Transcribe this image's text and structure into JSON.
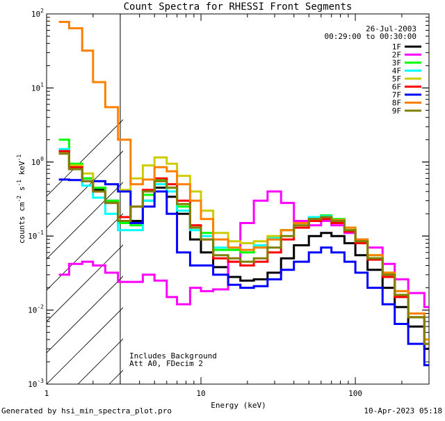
{
  "chart_data": {
    "type": "line",
    "title": "Count Spectra for RHESSI Front Segments",
    "date": "26-Jul-2003",
    "time_range": "00:29:00 to 00:30:00",
    "xlabel": "Energy (keV)",
    "ylabel_main": "counts cm",
    "ylabel_sup1": "-2",
    "ylabel_mid": " s",
    "ylabel_sup2": "-1",
    "ylabel_end": " keV",
    "ylabel_sup3": "-1",
    "x_scale": "log",
    "y_scale": "log",
    "xlim": [
      1,
      300
    ],
    "ylim": [
      0.001,
      100
    ],
    "x_ticks": [
      {
        "value": 1,
        "label": "1"
      },
      {
        "value": 10,
        "label": "10"
      },
      {
        "value": 100,
        "label": "100"
      }
    ],
    "y_ticks": [
      {
        "value": 100,
        "base": "10",
        "exp": "2"
      },
      {
        "value": 10,
        "base": "10",
        "exp": "1"
      },
      {
        "value": 1,
        "base": "10",
        "exp": "0"
      },
      {
        "value": 0.1,
        "base": "10",
        "exp": "-1"
      },
      {
        "value": 0.01,
        "base": "10",
        "exp": "-2"
      },
      {
        "value": 0.001,
        "base": "10",
        "exp": "-3"
      }
    ],
    "hatched_region_keV": [
      1,
      3
    ],
    "annotations": [
      "Includes Background",
      "Att A0, FDecim 2"
    ],
    "footer_left": "Generated by hsi_min_spectra_plot.pro",
    "footer_right": "10-Apr-2023 05:18",
    "series": [
      {
        "name": "1F",
        "color": "#000000",
        "x": [
          1.2,
          1.4,
          1.7,
          2,
          2.4,
          2.9,
          3.5,
          4.2,
          5,
          6,
          7,
          8.5,
          10,
          12,
          15,
          18,
          22,
          27,
          33,
          40,
          50,
          60,
          70,
          85,
          100,
          120,
          150,
          180,
          220,
          280
        ],
        "y": [
          1.4,
          0.85,
          0.6,
          0.42,
          0.3,
          0.15,
          0.16,
          0.3,
          0.45,
          0.34,
          0.2,
          0.09,
          0.06,
          0.038,
          0.028,
          0.025,
          0.026,
          0.032,
          0.05,
          0.075,
          0.1,
          0.11,
          0.1,
          0.08,
          0.055,
          0.035,
          0.02,
          0.011,
          0.006,
          0.003
        ]
      },
      {
        "name": "2F",
        "color": "#ff00ff",
        "x": [
          1.2,
          1.4,
          1.7,
          2,
          2.4,
          2.9,
          3.5,
          4.2,
          5,
          6,
          7,
          8.5,
          10,
          12,
          15,
          18,
          22,
          27,
          33,
          40,
          50,
          60,
          70,
          85,
          100,
          120,
          150,
          180,
          220,
          280
        ],
        "y": [
          0.03,
          0.042,
          0.045,
          0.04,
          0.032,
          0.024,
          0.024,
          0.03,
          0.025,
          0.015,
          0.012,
          0.02,
          0.018,
          0.019,
          0.045,
          0.15,
          0.3,
          0.4,
          0.28,
          0.16,
          0.14,
          0.16,
          0.14,
          0.11,
          0.09,
          0.07,
          0.042,
          0.026,
          0.017,
          0.011
        ]
      },
      {
        "name": "3F",
        "color": "#00ff00",
        "x": [
          1.2,
          1.4,
          1.7,
          2,
          2.4,
          2.9,
          3.5,
          4.2,
          5,
          6,
          7,
          8.5,
          10,
          12,
          15,
          18,
          22,
          27,
          33,
          40,
          50,
          60,
          70,
          85,
          100,
          120,
          150,
          180,
          220,
          280
        ],
        "y": [
          2.0,
          0.95,
          0.6,
          0.45,
          0.3,
          0.15,
          0.14,
          0.36,
          0.58,
          0.45,
          0.25,
          0.13,
          0.11,
          0.065,
          0.065,
          0.06,
          0.07,
          0.09,
          0.12,
          0.15,
          0.18,
          0.19,
          0.17,
          0.13,
          0.09,
          0.055,
          0.032,
          0.018,
          0.009,
          0.004
        ]
      },
      {
        "name": "4F",
        "color": "#00ffff",
        "x": [
          1.2,
          1.4,
          1.7,
          2,
          2.4,
          2.9,
          3.5,
          4.2,
          5,
          6,
          7,
          8.5,
          10,
          12,
          15,
          18,
          22,
          27,
          33,
          40,
          50,
          60,
          70,
          85,
          100,
          120,
          150,
          180,
          220,
          280
        ],
        "y": [
          1.5,
          0.8,
          0.48,
          0.33,
          0.2,
          0.12,
          0.12,
          0.3,
          0.5,
          0.4,
          0.22,
          0.12,
          0.1,
          0.07,
          0.07,
          0.065,
          0.075,
          0.095,
          0.12,
          0.15,
          0.18,
          0.185,
          0.16,
          0.12,
          0.085,
          0.05,
          0.03,
          0.016,
          0.008,
          0.0035
        ]
      },
      {
        "name": "5F",
        "color": "#cccc00",
        "x": [
          1.2,
          1.4,
          1.7,
          2,
          2.4,
          2.9,
          3.5,
          4.2,
          5,
          6,
          7,
          8.5,
          10,
          12,
          15,
          18,
          22,
          27,
          33,
          40,
          50,
          60,
          70,
          85,
          100,
          120,
          150,
          180,
          220,
          280
        ],
        "y": [
          1.3,
          0.9,
          0.7,
          0.55,
          0.5,
          0.42,
          0.6,
          0.9,
          1.15,
          0.95,
          0.65,
          0.4,
          0.22,
          0.11,
          0.085,
          0.08,
          0.085,
          0.1,
          0.12,
          0.15,
          0.17,
          0.18,
          0.16,
          0.12,
          0.085,
          0.05,
          0.03,
          0.016,
          0.008,
          0.0035
        ]
      },
      {
        "name": "6F",
        "color": "#ff0000",
        "x": [
          1.2,
          1.4,
          1.7,
          2,
          2.4,
          2.9,
          3.5,
          4.2,
          5,
          6,
          7,
          8.5,
          10,
          12,
          15,
          18,
          22,
          27,
          33,
          40,
          50,
          60,
          70,
          85,
          100,
          120,
          150,
          180,
          220,
          280
        ],
        "y": [
          1.4,
          0.85,
          0.55,
          0.4,
          0.28,
          0.18,
          0.25,
          0.42,
          0.6,
          0.5,
          0.3,
          0.14,
          0.09,
          0.05,
          0.045,
          0.04,
          0.045,
          0.06,
          0.09,
          0.13,
          0.16,
          0.17,
          0.15,
          0.115,
          0.08,
          0.048,
          0.028,
          0.015,
          0.008,
          0.0035
        ]
      },
      {
        "name": "7F",
        "color": "#0000ff",
        "x": [
          1.2,
          1.4,
          1.7,
          2,
          2.4,
          2.9,
          3.5,
          4.2,
          5,
          6,
          7,
          8.5,
          10,
          12,
          15,
          18,
          22,
          27,
          33,
          40,
          50,
          60,
          70,
          85,
          100,
          120,
          150,
          180,
          220,
          280
        ],
        "y": [
          0.58,
          0.57,
          0.55,
          0.55,
          0.5,
          0.4,
          0.15,
          0.25,
          0.4,
          0.2,
          0.06,
          0.04,
          0.04,
          0.03,
          0.022,
          0.02,
          0.021,
          0.026,
          0.035,
          0.045,
          0.06,
          0.07,
          0.06,
          0.045,
          0.032,
          0.02,
          0.012,
          0.0065,
          0.0035,
          0.0018
        ]
      },
      {
        "name": "8F",
        "color": "#ff8000",
        "x": [
          1.2,
          1.4,
          1.7,
          2,
          2.4,
          2.9,
          3.5,
          4.2,
          5,
          6,
          7,
          8.5,
          10,
          12,
          15,
          18,
          22,
          27,
          33,
          40,
          50,
          60,
          70,
          85,
          100,
          120,
          150,
          180,
          220,
          280
        ],
        "y": [
          78,
          64,
          32,
          12,
          5.5,
          2.0,
          0.5,
          0.58,
          0.85,
          0.75,
          0.5,
          0.3,
          0.17,
          0.09,
          0.07,
          0.065,
          0.07,
          0.09,
          0.12,
          0.15,
          0.17,
          0.18,
          0.165,
          0.13,
          0.09,
          0.055,
          0.032,
          0.018,
          0.009,
          0.004
        ]
      },
      {
        "name": "9F",
        "color": "#808000",
        "x": [
          1.2,
          1.4,
          1.7,
          2,
          2.4,
          2.9,
          3.5,
          4.2,
          5,
          6,
          7,
          8.5,
          10,
          12,
          15,
          18,
          22,
          27,
          33,
          40,
          50,
          60,
          70,
          85,
          100,
          120,
          150,
          180,
          220,
          280
        ],
        "y": [
          1.3,
          0.8,
          0.55,
          0.4,
          0.28,
          0.16,
          0.25,
          0.4,
          0.55,
          0.45,
          0.27,
          0.13,
          0.09,
          0.055,
          0.05,
          0.045,
          0.05,
          0.07,
          0.1,
          0.14,
          0.17,
          0.18,
          0.16,
          0.12,
          0.085,
          0.05,
          0.03,
          0.016,
          0.008,
          0.0035
        ]
      }
    ]
  }
}
